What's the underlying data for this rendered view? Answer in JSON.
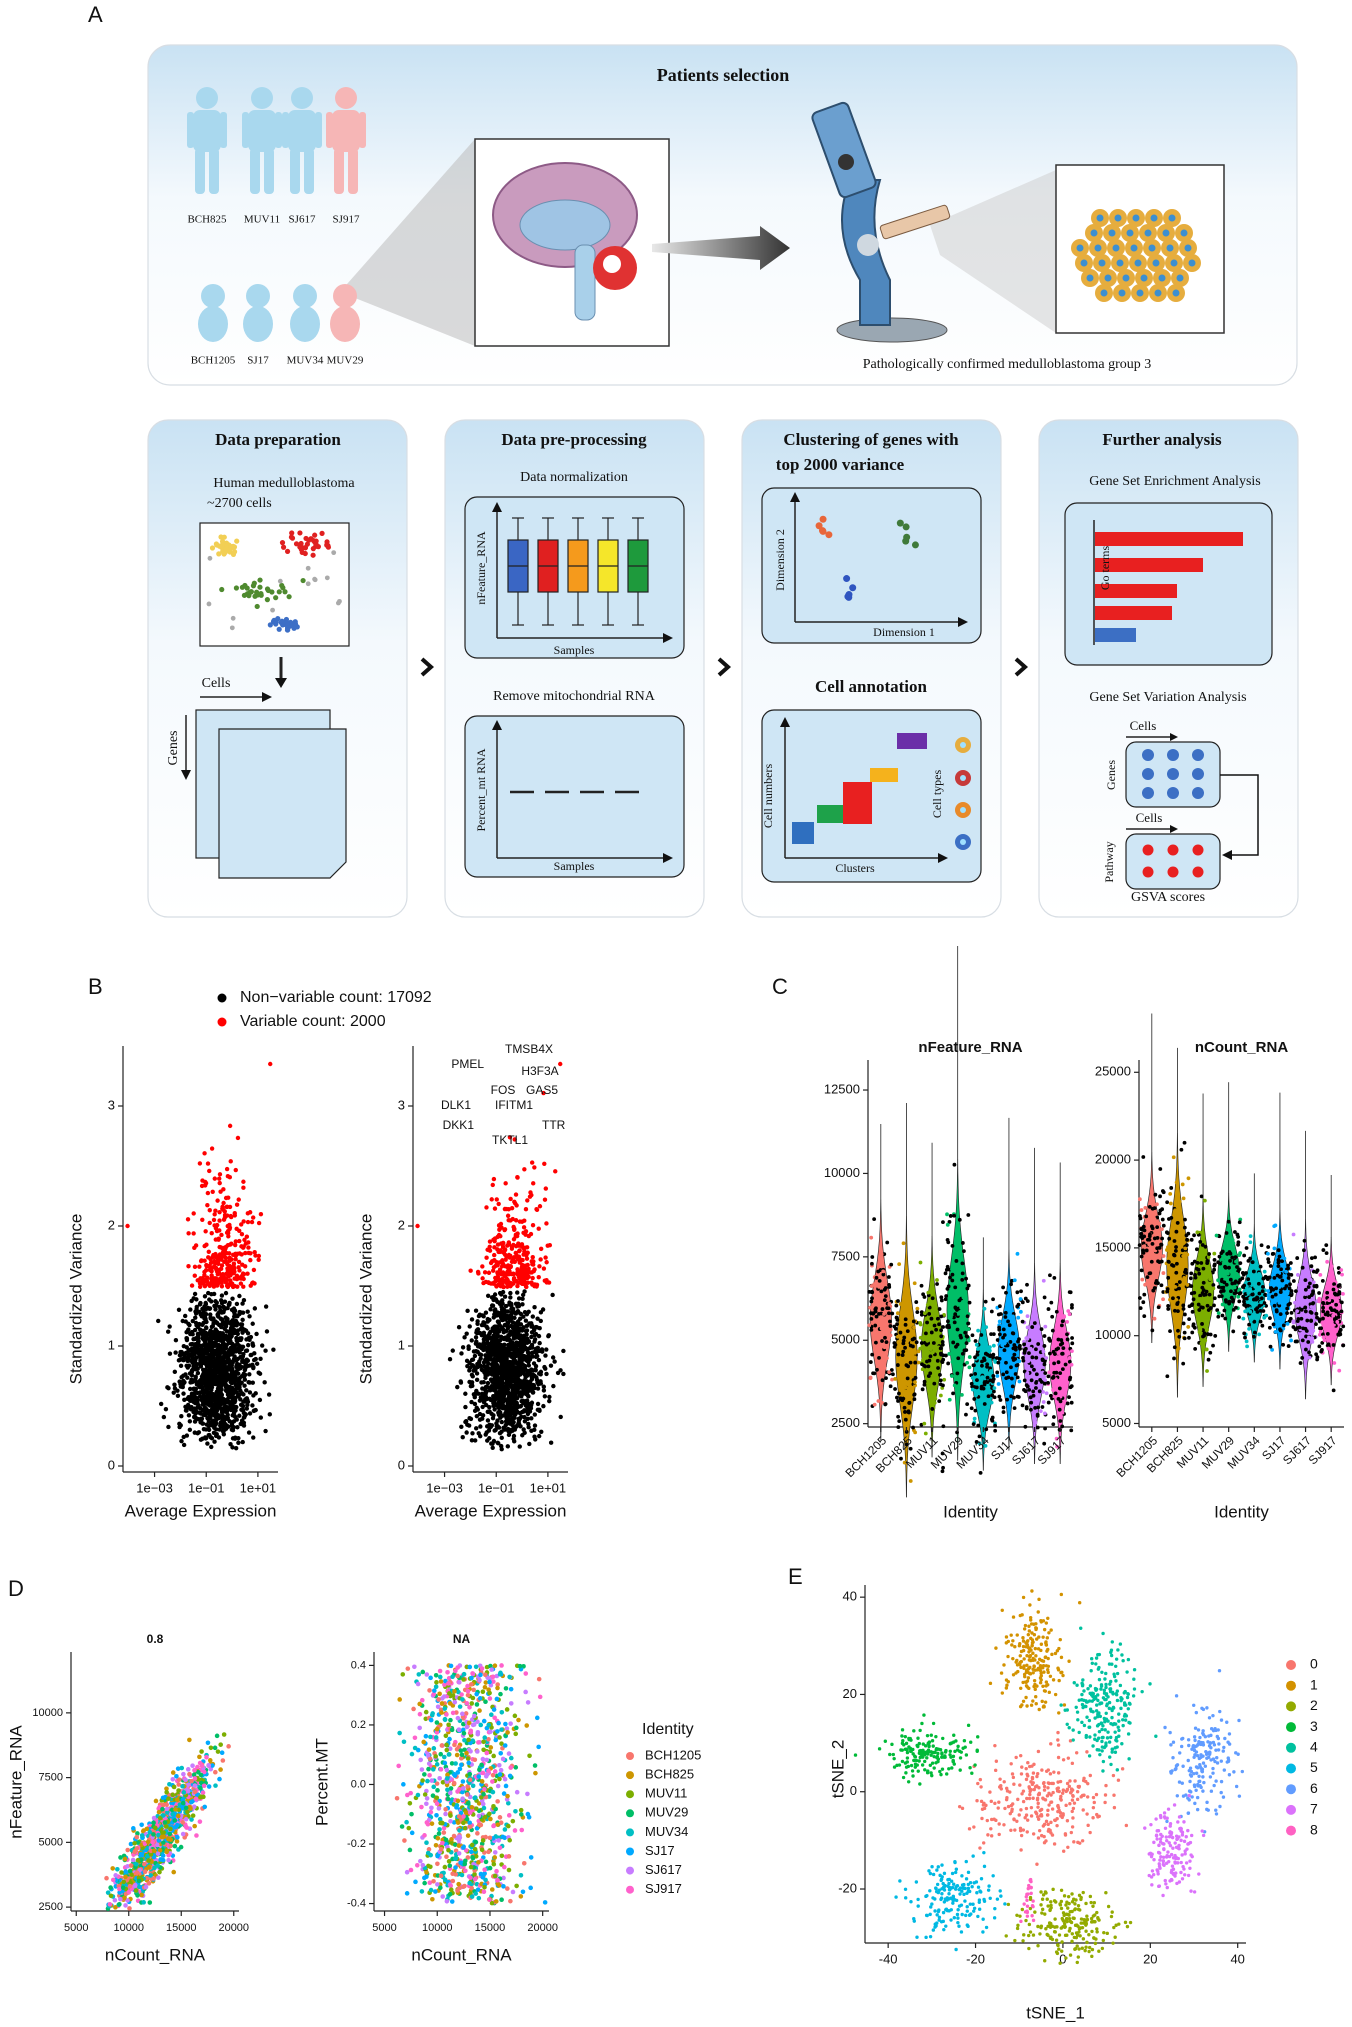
{
  "panel_labels": [
    "A",
    "B",
    "C",
    "D",
    "E"
  ],
  "panel_a": {
    "title": "Patients selection",
    "patients_top": [
      "BCH825",
      "MUV11",
      "SJ617",
      "SJ917"
    ],
    "patients_bottom": [
      "BCH1205",
      "SJ17",
      "MUV34",
      "MUV29"
    ],
    "caption": "Pathologically confirmed medulloblastoma group 3",
    "data_preparation": {
      "title": "Data preparation",
      "description": [
        "Human medulloblastoma",
        "~2700 cells"
      ],
      "cells": "Cells",
      "genes": "Genes"
    },
    "pre_processing": {
      "title": "Data pre-processing",
      "normalization": "Data normalization",
      "normalization_y": "nFeature_RNA",
      "normalization_x": "Samples",
      "mito": "Remove mitochondrial RNA",
      "mito_y": "Percent_mt RNA",
      "mito_x": "Samples"
    },
    "clustering": {
      "title": [
        "Clustering of  genes with",
        "top 2000 variance"
      ],
      "y": "Dimension 2",
      "x": "Dimension 1",
      "annotation": "Cell annotation",
      "annotation_y": "Cell numbers",
      "annotation_x": "Clusters",
      "cell_types": "Cell types"
    },
    "further": {
      "title": "Further analysis",
      "gsea": "Gene Set Enrichment Analysis",
      "gsea_y": "Go terms",
      "gsva": "Gene Set Variation Analysis",
      "cells_1": "Cells",
      "genes": "Genes",
      "cells_2": "Cells",
      "pathway": "Pathway",
      "scores": "GSVA scores"
    }
  },
  "panel_b": {
    "legend": [
      {
        "name": "Non−variable count: 17092",
        "color": "#000000"
      },
      {
        "name": "Variable count: 2000",
        "color": "#ff0000"
      }
    ],
    "xlabel": "Average Expression",
    "ylabel": "Standardized Variance",
    "log_x": true,
    "xlim": [
      6e-05,
      60
    ],
    "xticks": [
      {
        "value": 0.001,
        "label": "1e−03"
      },
      {
        "value": 0.1,
        "label": "1e−01"
      },
      {
        "value": 10,
        "label": "1e+01"
      }
    ],
    "ylim": [
      -0.05,
      3.5
    ],
    "yticks": [
      0,
      1,
      2,
      3
    ],
    "genes": [
      "TMSB4X",
      "PMEL",
      "H3F3A",
      "FOS",
      "GAS5",
      "DLK1",
      "IFITM1",
      "DKK1",
      "TTR",
      "TKTL1"
    ]
  },
  "panel_c": {
    "xlabel": "Identity",
    "categories": [
      "BCH1205",
      "BCH825",
      "MUV11",
      "MUV29",
      "MUV34",
      "SJ17",
      "SJ617",
      "SJ917"
    ],
    "colors": [
      "#F8766D",
      "#CD9600",
      "#7CAE00",
      "#00BE67",
      "#00BFC4",
      "#00A9FF",
      "#C77CFF",
      "#FF61CC"
    ],
    "plots": [
      {
        "title": "nFeature_RNA",
        "ylim": [
          2400,
          13400
        ],
        "yticks": [
          2500,
          5000,
          7500,
          10000,
          12500
        ]
      },
      {
        "title": "nCount_RNA",
        "ylim": [
          4800,
          25700
        ],
        "yticks": [
          5000,
          10000,
          15000,
          20000,
          25000
        ]
      }
    ]
  },
  "panel_d": {
    "legend_title": "Identity",
    "plots": [
      {
        "title": "0.8",
        "xlabel": "nCount_RNA",
        "ylabel": "nFeature_RNA",
        "xlim": [
          4500,
          20500
        ],
        "xticks": [
          5000,
          10000,
          15000,
          20000
        ],
        "ylim": [
          2350,
          12350
        ],
        "yticks": [
          2500,
          5000,
          7500,
          10000
        ]
      },
      {
        "title": "NA",
        "xlabel": "nCount_RNA",
        "ylabel": "Percent.MT",
        "xlim": [
          4000,
          20600
        ],
        "xticks": [
          5000,
          10000,
          15000,
          20000
        ],
        "ylim": [
          -0.425,
          0.445
        ],
        "yticks": [
          -0.4,
          -0.2,
          {
            "value": 0,
            "label": "0.0"
          },
          0.2,
          0.4
        ]
      }
    ]
  },
  "panel_e": {
    "xlabel": "tSNE_1",
    "ylabel": "tSNE_2",
    "xlim": [
      -45.3,
      41.9
    ],
    "xticks": [
      -40,
      -20,
      0,
      20,
      40
    ],
    "ylim": [
      -31.1,
      42.5
    ],
    "yticks": [
      -20,
      0,
      20,
      40
    ],
    "clusters": [
      "0",
      "1",
      "2",
      "3",
      "4",
      "5",
      "6",
      "7",
      "8"
    ],
    "colors": [
      "#F8766D",
      "#D39200",
      "#93AA00",
      "#00BA38",
      "#00C19F",
      "#00B9E3",
      "#619CFF",
      "#DB72FB",
      "#FF61C3"
    ]
  }
}
